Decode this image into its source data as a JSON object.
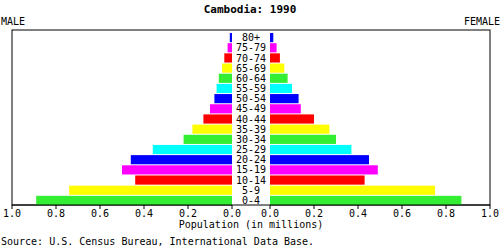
{
  "chart_data": {
    "type": "bar",
    "orientation": "horizontal",
    "title": "Cambodia: 1990",
    "xlabel": "Population (in millions)",
    "source": "Source: U.S. Census Bureau, International Data Base.",
    "categories": [
      "0-4",
      "5-9",
      "10-14",
      "15-19",
      "20-24",
      "25-29",
      "30-34",
      "35-39",
      "40-44",
      "45-49",
      "50-54",
      "55-59",
      "60-64",
      "65-69",
      "70-74",
      "75-79",
      "80+"
    ],
    "colors": [
      "#33ee33",
      "#ffff00",
      "#ff0000",
      "#ff00ff",
      "#0000ff",
      "#00ffff",
      "#33ee33",
      "#ffff00",
      "#ff0000",
      "#ff00ff",
      "#0000ff",
      "#00ffff",
      "#33ee33",
      "#ffff00",
      "#ff0000",
      "#ff00ff",
      "#0000ff"
    ],
    "series": [
      {
        "name": "MALE",
        "values": [
          0.89,
          0.74,
          0.44,
          0.5,
          0.46,
          0.36,
          0.22,
          0.18,
          0.13,
          0.1,
          0.08,
          0.07,
          0.06,
          0.045,
          0.035,
          0.02,
          0.01
        ]
      },
      {
        "name": "FEMALE",
        "values": [
          0.87,
          0.75,
          0.43,
          0.49,
          0.45,
          0.37,
          0.3,
          0.27,
          0.2,
          0.14,
          0.13,
          0.1,
          0.08,
          0.065,
          0.045,
          0.03,
          0.015
        ]
      }
    ],
    "xlim": [
      0,
      1
    ],
    "xticks": [
      {
        "value": 0,
        "label": "0.0"
      },
      0.2,
      0.4,
      0.6,
      0.8,
      {
        "value": 1,
        "label": "1.0"
      }
    ]
  }
}
